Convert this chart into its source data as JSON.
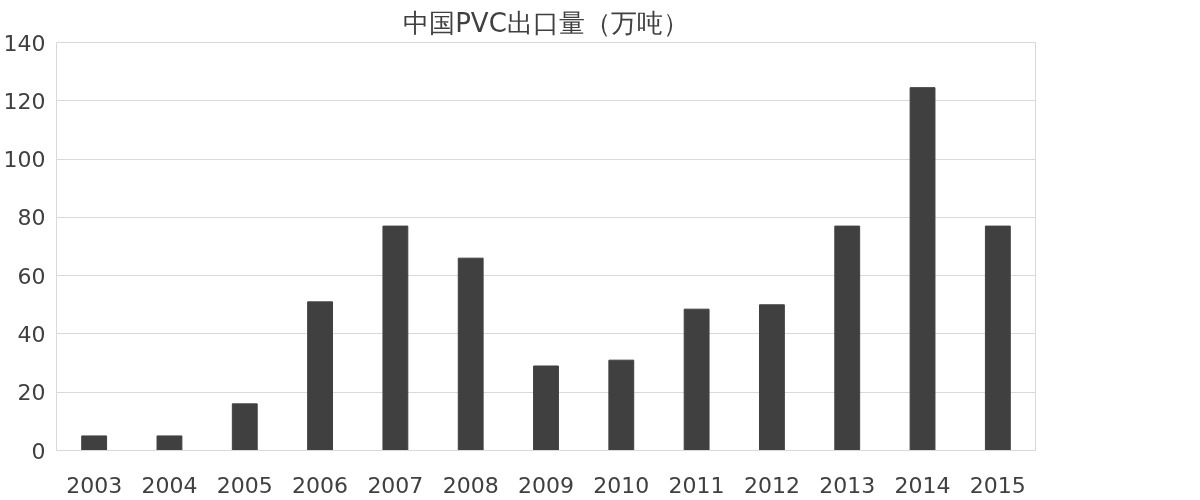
{
  "chart_data": {
    "type": "bar",
    "title": "中国PVC出口量（万吨）",
    "categories": [
      "2003",
      "2004",
      "2005",
      "2006",
      "2007",
      "2008",
      "2009",
      "2010",
      "2011",
      "2012",
      "2013",
      "2014",
      "2015"
    ],
    "values": [
      5,
      5,
      16,
      51,
      77,
      66,
      29,
      31,
      48.5,
      50,
      77,
      124.5,
      77
    ],
    "color": "#404040",
    "ylim": [
      0,
      140
    ],
    "yticks": [
      0,
      20,
      40,
      60,
      80,
      100,
      120,
      140
    ],
    "grid": "y"
  }
}
